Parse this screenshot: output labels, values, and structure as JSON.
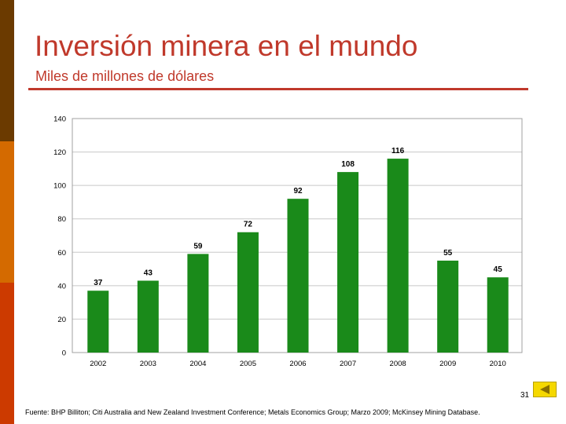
{
  "slide": {
    "title": "Inversión minera en el mundo",
    "subtitle": "Miles de millones de dólares",
    "page_number": "31",
    "source": "Fuente: BHP Billiton; Citi Australia and New Zealand Investment Conference; Metals Economics Group; Marzo 2009; McKinsey Mining Database."
  },
  "colors": {
    "accent": "#c0392b",
    "bar": "#1a8a1a",
    "grid": "#c8c8c8"
  },
  "chart_data": {
    "type": "bar",
    "categories": [
      "2002",
      "2003",
      "2004",
      "2005",
      "2006",
      "2007",
      "2008",
      "2009",
      "2010"
    ],
    "values": [
      37,
      43,
      59,
      72,
      92,
      108,
      116,
      55,
      45
    ],
    "data_labels": [
      "37",
      "43",
      "59",
      "72",
      "92",
      "108",
      "116",
      "55",
      "45"
    ],
    "title": "",
    "xlabel": "",
    "ylabel": "",
    "ylim": [
      0,
      140
    ],
    "yticks": [
      0,
      20,
      40,
      60,
      80,
      100,
      120,
      140
    ],
    "grid": true,
    "legend": "none"
  }
}
